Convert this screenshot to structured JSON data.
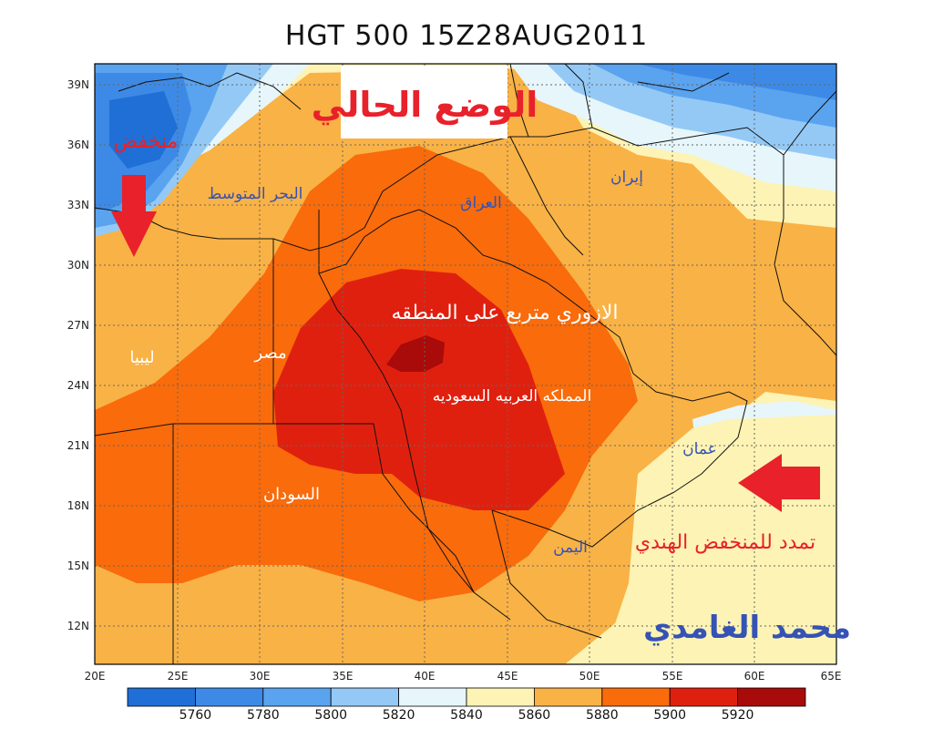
{
  "title": "HGT 500 15Z28AUG2011",
  "overlay_title": "الوضع الحالي",
  "map": {
    "lon_ticks": [
      "20E",
      "25E",
      "30E",
      "35E",
      "40E",
      "45E",
      "50E",
      "55E",
      "60E",
      "65E"
    ],
    "lat_ticks": [
      "39N",
      "36N",
      "33N",
      "30N",
      "27N",
      "24N",
      "21N",
      "18N",
      "15N",
      "12N"
    ]
  },
  "labels": {
    "low_med": "منخفض",
    "med_sea": "البحر المتوسط",
    "iraq": "العراق",
    "iran": "إيران",
    "libya": "ليبيا",
    "egypt": "مصر",
    "ridge": "الازوري متربع على المنطقه",
    "saudi": "المملكه العربيه السعوديه",
    "sudan": "السودان",
    "oman": "عمان",
    "yemen": "اليمن",
    "indian_low": "تمدد للمنخفض الهندي",
    "author": "محمد الغامدي"
  },
  "legend": {
    "values": [
      "5760",
      "5780",
      "5800",
      "5820",
      "5840",
      "5860",
      "5880",
      "5900",
      "5920"
    ],
    "colors": [
      "#1f6fd6",
      "#3d8ae6",
      "#5aa3ef",
      "#94c9f6",
      "#e6f6fb",
      "#fdf3b4",
      "#f9b245",
      "#f96b0b",
      "#e0200f",
      "#a90a0a"
    ]
  },
  "colors": {
    "arrow": "#e8212b",
    "label_red": "#e8212b",
    "label_blue": "#3552b5",
    "label_white": "#ffffff"
  }
}
